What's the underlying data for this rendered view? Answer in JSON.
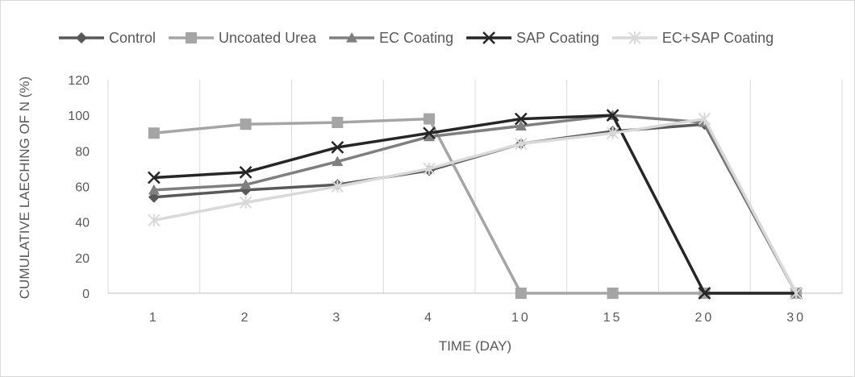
{
  "chart_data": {
    "type": "line",
    "categories": [
      "1",
      "2",
      "3",
      "4",
      "10",
      "15",
      "20",
      "30"
    ],
    "xlabel": "TIME (DAY)",
    "ylabel": "CUMULATIVE LAECHING OF N (%)",
    "ylim": [
      0,
      120
    ],
    "yticks": [
      "0",
      "20",
      "40",
      "60",
      "80",
      "100",
      "120"
    ],
    "grid": "vertical",
    "legend_position": "top",
    "series": [
      {
        "name": "Control",
        "marker": "diamond",
        "color": "#595959",
        "values": [
          54,
          58,
          61,
          69,
          84,
          91,
          95,
          0
        ]
      },
      {
        "name": "Uncoated Urea",
        "marker": "square",
        "color": "#a5a5a5",
        "values": [
          90,
          95,
          96,
          98,
          0,
          0,
          0,
          0
        ]
      },
      {
        "name": "EC Coating",
        "marker": "triangle",
        "color": "#7f7f7f",
        "values": [
          58,
          61,
          74,
          88,
          94,
          100,
          96,
          0
        ]
      },
      {
        "name": "SAP Coating",
        "marker": "x",
        "color": "#262626",
        "values": [
          65,
          68,
          82,
          90,
          98,
          100,
          0,
          0
        ]
      },
      {
        "name": "EC+SAP Coating",
        "marker": "asterisk",
        "color": "#d9d9d9",
        "values": [
          41,
          51,
          60,
          70,
          84,
          90,
          98,
          0
        ]
      }
    ]
  }
}
